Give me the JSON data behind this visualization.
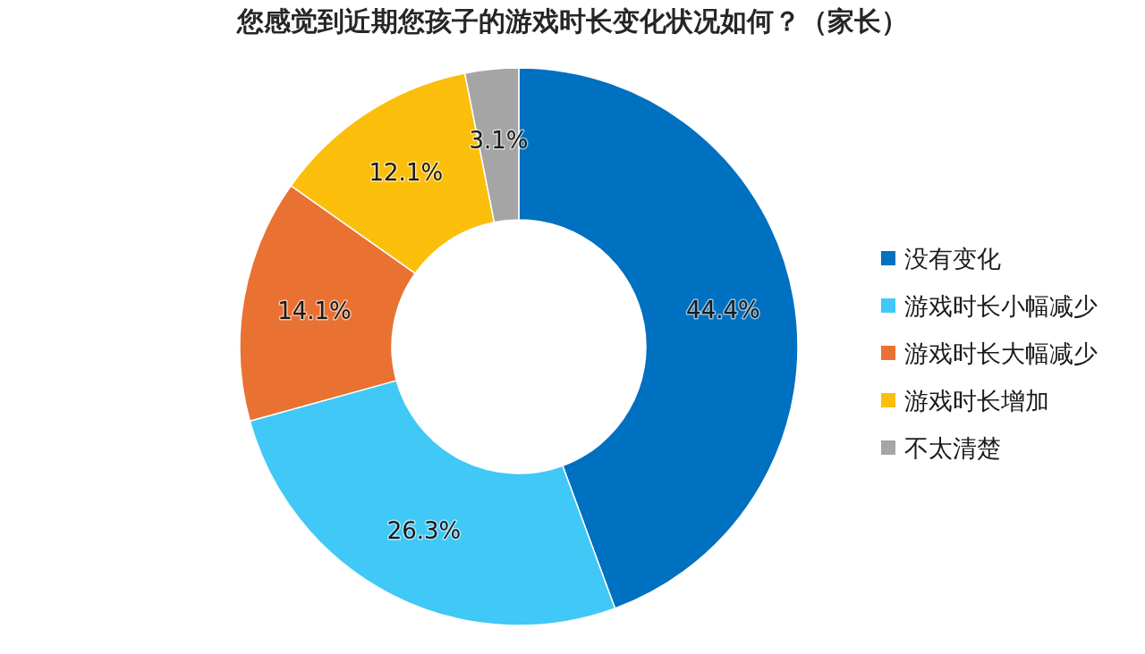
{
  "chart_data": {
    "type": "donut",
    "title": "您感觉到近期您孩子的游戏时长变化状况如何？（家长）",
    "categories": [
      "没有变化",
      "游戏时长小幅减少",
      "游戏时长大幅减少",
      "游戏时长增加",
      "不太清楚"
    ],
    "values": [
      44.4,
      26.3,
      14.1,
      12.1,
      3.1
    ],
    "colors": [
      "#0070c0",
      "#40c8f6",
      "#e97132",
      "#fbbf0b",
      "#a5a5a5"
    ],
    "value_labels": [
      "44.4%",
      "26.3%",
      "14.1%",
      "12.1%",
      "3.1%"
    ],
    "legend": "right"
  }
}
